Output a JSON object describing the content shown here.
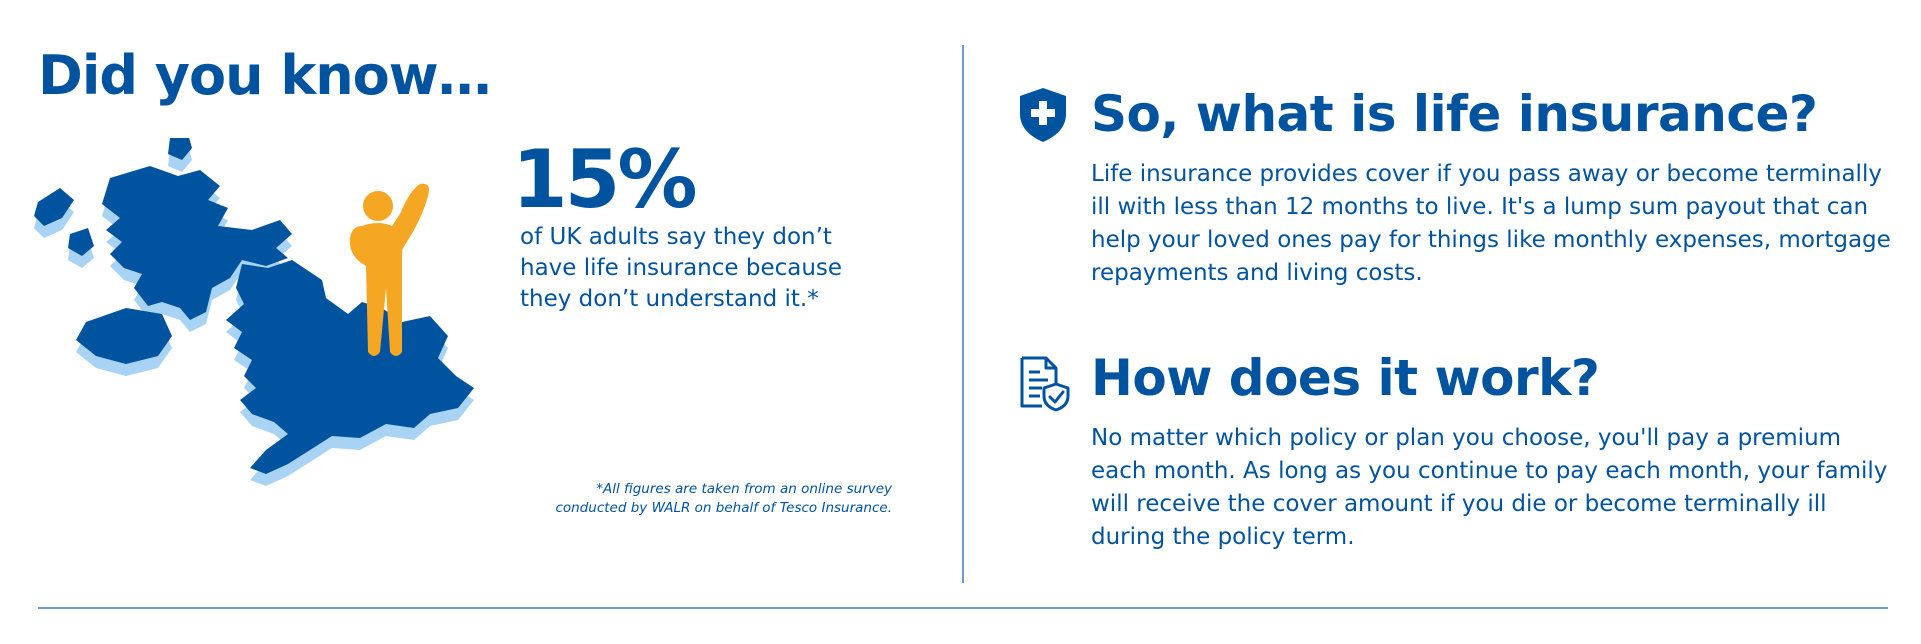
{
  "left": {
    "heading": "Did you know…",
    "stat_value": "15%",
    "stat_text": "of UK adults say they don’t have life insurance because they don’t understand it.*",
    "footnote": "*All figures are taken from an online survey conducted by WALR on behalf of Tesco Insurance."
  },
  "sections": [
    {
      "icon": "shield-plus-icon",
      "title": "So, what is life insurance?",
      "body": "Life insurance provides cover if you pass away or become terminally ill with less than 12 months to live. It's a lump sum payout that can help your loved ones pay for things like monthly expenses, mortgage repayments and living costs."
    },
    {
      "icon": "document-check-icon",
      "title": "How does it work?",
      "body": "No matter which policy or plan you choose, you'll pay a premium each month. As long as you continue to pay each month, your family will receive the cover amount if you die or become terminally ill during the policy term."
    }
  ],
  "colors": {
    "brand_blue": "#00539f",
    "light_blue": "#a8d3f5",
    "accent_orange": "#f5a623",
    "divider": "#6b9fd3"
  }
}
